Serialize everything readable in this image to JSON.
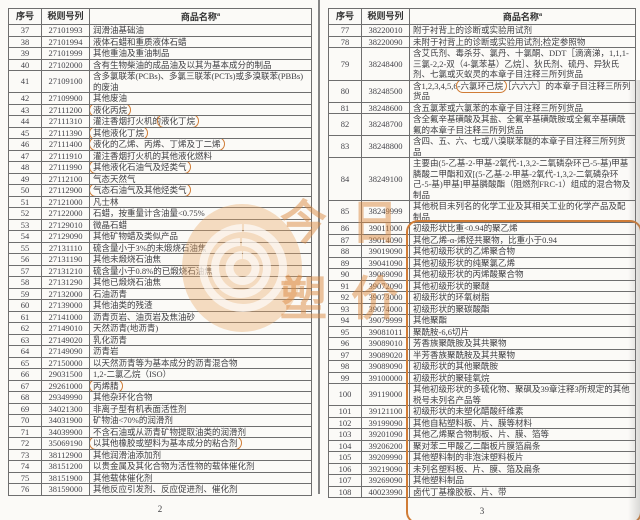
{
  "colors": {
    "annotation": "#d07c36",
    "watermark": "#dd8b45",
    "text": "#3e3e42",
    "border": "#6e6e6e"
  },
  "watermark": {
    "icon": "spiral-logo-icon",
    "chars_line1": "今日",
    "chars_line2": "塑价"
  },
  "footer": {
    "left_page": "2",
    "right_page": "3"
  },
  "left_table": {
    "headers": [
      "序号",
      "税则号列",
      "商品名称"
    ],
    "name_sup": "a",
    "rows": [
      {
        "no": "37",
        "code": "27101993",
        "name": "润滑油基础油"
      },
      {
        "no": "38",
        "code": "27101994",
        "name": "液体石蜡和重质液体石蜡"
      },
      {
        "no": "39",
        "code": "27101999",
        "name": "其他重油及重油制品"
      },
      {
        "no": "40",
        "code": "27102000",
        "name": "含有生物柴油的成品油及以其为基本成分的制品"
      },
      {
        "no": "41",
        "code": "27109100",
        "name": "含多氯联苯(PCBs)、多氯三联苯(PCTs)或多溴联苯(PBBs)的废油"
      },
      {
        "no": "42",
        "code": "27109900",
        "name": "其他废油"
      },
      {
        "no": "43",
        "code": "27111200",
        "name": "液化丙烷",
        "mark": "液化丙烷"
      },
      {
        "no": "44",
        "code": "27111310",
        "name": "灌注香烟打火机的液化丁烷",
        "mark": "液化丁烷"
      },
      {
        "no": "45",
        "code": "27111390",
        "name": "其他液化丁烷",
        "mark": "其他液化丁烷"
      },
      {
        "no": "46",
        "code": "27111400",
        "name": "液化的乙烯、丙烯、丁烯及丁二烯",
        "mark": "液化的乙烯、丙烯、丁烯及丁二烯"
      },
      {
        "no": "47",
        "code": "27111910",
        "name": "灌注香烟打火机的其他液化燃料"
      },
      {
        "no": "48",
        "code": "27111990",
        "name": "其他液化石油气及烃类气",
        "mark": "其他液化石油气及烃类气"
      },
      {
        "no": "49",
        "code": "27112100",
        "name": "气态天然气"
      },
      {
        "no": "50",
        "code": "27112900",
        "name": "气态石油气及其他烃类气",
        "mark": "气态石油气及其他烃类气"
      },
      {
        "no": "51",
        "code": "27121000",
        "name": "凡士林"
      },
      {
        "no": "52",
        "code": "27122000",
        "name": "石蜡，按重量计含油量<0.75%"
      },
      {
        "no": "53",
        "code": "27129010",
        "name": "微晶石蜡"
      },
      {
        "no": "54",
        "code": "27129090",
        "name": "其他矿物蜡及类似产品"
      },
      {
        "no": "55",
        "code": "27131110",
        "name": "硫含量小于3%的未煅烧石油焦"
      },
      {
        "no": "56",
        "code": "27131190",
        "name": "其他未煅烧石油焦"
      },
      {
        "no": "57",
        "code": "27131210",
        "name": "硫含量小于0.8%的已煅烧石油焦"
      },
      {
        "no": "58",
        "code": "27131290",
        "name": "其他已煅烧石油焦"
      },
      {
        "no": "59",
        "code": "27132000",
        "name": "石油沥青"
      },
      {
        "no": "60",
        "code": "27139000",
        "name": "其他油类的残渣"
      },
      {
        "no": "61",
        "code": "27141000",
        "name": "沥青页岩、油页岩及焦油砂"
      },
      {
        "no": "62",
        "code": "27149010",
        "name": "天然沥青(地沥青)"
      },
      {
        "no": "63",
        "code": "27149020",
        "name": "乳化沥青"
      },
      {
        "no": "64",
        "code": "27149090",
        "name": "沥青岩"
      },
      {
        "no": "65",
        "code": "27150000",
        "name": "以天然沥青等为基本成分的沥青混合物"
      },
      {
        "no": "66",
        "code": "29031500",
        "name": "1,2-二氯乙烷（ISO）"
      },
      {
        "no": "67",
        "code": "29261000",
        "name": "丙烯腈",
        "mark": "丙烯腈"
      },
      {
        "no": "68",
        "code": "29349990",
        "name": "其他杂环化合物"
      },
      {
        "no": "69",
        "code": "34021300",
        "name": "非离子型有机表面活性剂"
      },
      {
        "no": "70",
        "code": "34031900",
        "name": "矿物油<70%的润滑剂"
      },
      {
        "no": "71",
        "code": "34039900",
        "name": "不含石油或从沥青矿物提取油类的润滑剂"
      },
      {
        "no": "72",
        "code": "35069190",
        "name": "以其他橡胶或塑料为基本成分的粘合剂",
        "mark": "以其他橡胶或塑料为基本成分的粘合剂"
      },
      {
        "no": "73",
        "code": "38112900",
        "name": "其他润滑油添加剂"
      },
      {
        "no": "74",
        "code": "38151200",
        "name": "以贵金属及其化合物为活性物的载体催化剂"
      },
      {
        "no": "75",
        "code": "38151900",
        "name": "其他载体催化剂"
      },
      {
        "no": "76",
        "code": "38159000",
        "name": "其他反应引发剂、反应促进剂、催化剂"
      }
    ]
  },
  "right_table": {
    "headers": [
      "序号",
      "税则号列",
      "商品名称"
    ],
    "name_sup": "a",
    "block_mark_from": "86",
    "block_mark_to": "108",
    "rows": [
      {
        "no": "77",
        "code": "38220010",
        "name": "附于衬背上的诊断或实验用试剂"
      },
      {
        "no": "78",
        "code": "38220090",
        "name": "未附于衬背上的诊断或实验用试剂;检定参照物"
      },
      {
        "no": "79",
        "code": "38248400",
        "name": "含艾氏剂、毒杀芬、氯丹、十氯酮、DDT［滴滴涕，1,1,1-三氯-2,2-双（4-氯苯基）乙烷］、狄氏剂、硫丹、异狄氏剂、七氯或灭蚁灵的本章子目注释三所列货品"
      },
      {
        "no": "80",
        "code": "38248500",
        "name": "含1,2,3,4,5,6-六氯环己烷［六六六］的本章子目注释三所列货品",
        "mark": "六氯环己烷"
      },
      {
        "no": "81",
        "code": "38248600",
        "name": "含五氯苯或六氯苯的本章子目注释三所列货品"
      },
      {
        "no": "82",
        "code": "38248700",
        "name": "含全氟辛基磺酸及其盐、全氟辛基磺酰胺或全氟辛基磺酰氟的本章子目注释三所列货品"
      },
      {
        "no": "83",
        "code": "38248800",
        "name": "含四、五、六、七或八溴联苯醚的本章子目注释三所列货品"
      },
      {
        "no": "84",
        "code": "38249100",
        "name": "主要由(5-乙基-2-甲基-2氧代-1,3,2-二氧磷杂环己-5-基)甲基膦酸二甲酯和双[(5-乙基-2-甲基-2氧代-1,3,2-二氧磷杂环己-5-基)甲基]甲基膦酸酯（阻燃剂FRC-1）组成的混合物及制品"
      },
      {
        "no": "85",
        "code": "38249999",
        "name": "其他税目未列名的化学工业及其相关工业的化学产品及配制品"
      },
      {
        "no": "86",
        "code": "39011000",
        "name": "初级形状比重<0.94的聚乙烯"
      },
      {
        "no": "87",
        "code": "39014090",
        "name": "其他乙烯-α-烯烃共聚物，比重小于0.94"
      },
      {
        "no": "88",
        "code": "39019090",
        "name": "其他初级形状的乙烯聚合物"
      },
      {
        "no": "89",
        "code": "39041090",
        "name": "其他初级形状的纯聚氯乙烯"
      },
      {
        "no": "90",
        "code": "39069090",
        "name": "其他初级形状的丙烯酸聚合物"
      },
      {
        "no": "91",
        "code": "39072090",
        "name": "其他初级形状的聚醚"
      },
      {
        "no": "92",
        "code": "39073000",
        "name": "初级形状的环氧树脂"
      },
      {
        "no": "93",
        "code": "39074000",
        "name": "初级形状的聚碳酸酯"
      },
      {
        "no": "94",
        "code": "39079999",
        "name": "其他聚酯"
      },
      {
        "no": "95",
        "code": "39081011",
        "name": "聚酰胺-6,6切片"
      },
      {
        "no": "96",
        "code": "39089010",
        "name": "芳香族聚酰胺及其共聚物"
      },
      {
        "no": "97",
        "code": "39089020",
        "name": "半芳香族聚酰胺及其共聚物"
      },
      {
        "no": "98",
        "code": "39089090",
        "name": "初级形状的其他聚酰胺"
      },
      {
        "no": "99",
        "code": "39100000",
        "name": "初级形状的聚硅氧烷"
      },
      {
        "no": "100",
        "code": "39119000",
        "name": "其他初级形状的多硫化物、聚砜及39章注释3所规定的其他税号未列名产品等"
      },
      {
        "no": "101",
        "code": "39121100",
        "name": "初级形状的未塑化醋酸纤维素"
      },
      {
        "no": "102",
        "code": "39199090",
        "name": "其他自粘塑料板、片、膜等材料"
      },
      {
        "no": "103",
        "code": "39201090",
        "name": "其他乙烯聚合物制板、片、膜、箔等"
      },
      {
        "no": "104",
        "code": "39206200",
        "name": "聚对苯二甲酸乙二酯板片膜箔扁条"
      },
      {
        "no": "105",
        "code": "39209990",
        "name": "其他塑料制的非泡沫塑料板片"
      },
      {
        "no": "106",
        "code": "39219090",
        "name": "未列名塑料板、片、膜、箔及扁条"
      },
      {
        "no": "107",
        "code": "39269090",
        "name": "其他塑料制品"
      },
      {
        "no": "108",
        "code": "40023990",
        "name": "卤代丁基橡胶板、片、带"
      }
    ]
  }
}
